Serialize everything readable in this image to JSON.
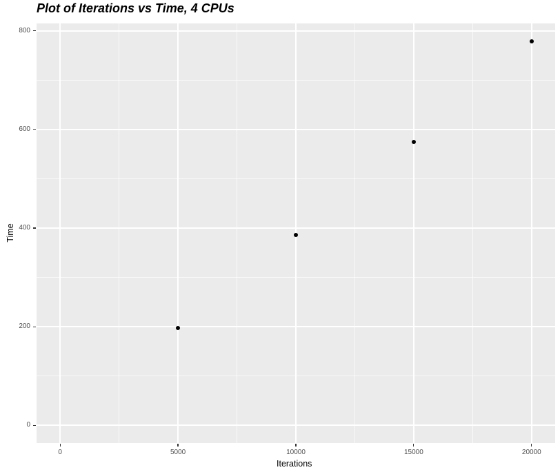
{
  "chart_data": {
    "type": "scatter",
    "title": "Plot of Iterations vs Time, 4 CPUs",
    "xlabel": "Iterations",
    "ylabel": "Time",
    "points": [
      {
        "x": 5000,
        "y": 198
      },
      {
        "x": 10000,
        "y": 386
      },
      {
        "x": 15000,
        "y": 575
      },
      {
        "x": 20000,
        "y": 778
      }
    ],
    "xlim": [
      -1000,
      21000
    ],
    "ylim": [
      -36,
      815
    ],
    "x_major_ticks": [
      0,
      5000,
      10000,
      15000,
      20000
    ],
    "x_tick_labels": [
      "0",
      "5000",
      "10000",
      "15000",
      "20000"
    ],
    "x_minor_ticks": [
      2500,
      7500,
      12500,
      17500
    ],
    "y_major_ticks": [
      0,
      200,
      400,
      600,
      800
    ],
    "y_tick_labels": [
      "0",
      "200",
      "400",
      "600",
      "800"
    ],
    "y_minor_ticks": [
      100,
      300,
      500,
      700
    ],
    "grid": true,
    "legend_position": "none",
    "style": {
      "panel_background": "#EBEBEB",
      "grid_major_color": "#FFFFFF",
      "grid_minor_color": "#FFFFFF",
      "point_color": "#000000",
      "tick_label_color": "#4D4D4D",
      "axis_title_color": "#000000",
      "tick_mark_color": "#333333",
      "title_color": "#000000"
    }
  }
}
